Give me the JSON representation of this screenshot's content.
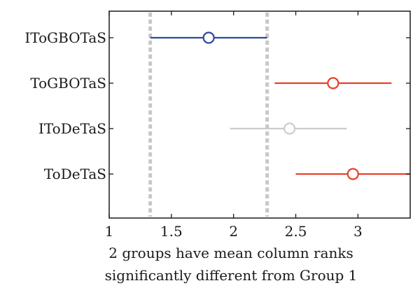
{
  "chart_data": {
    "type": "scatter",
    "subtype": "multiple-comparison-interval-plot",
    "xlabel_lines": [
      "2 groups have mean column ranks",
      "significantly different from Group 1"
    ],
    "xlim": [
      1,
      3.42
    ],
    "xticks": [
      1,
      1.5,
      2,
      2.5,
      3
    ],
    "xtick_labels": [
      "1",
      "1.5",
      "2",
      "2.5",
      "3"
    ],
    "categories": [
      "IToGBOTaS",
      "ToGBOTaS",
      "IToDeTaS",
      "ToDeTaS"
    ],
    "groups": [
      {
        "name": "IToGBOTaS",
        "mean": 1.8,
        "low": 1.33,
        "high": 2.27,
        "color": "#2b4aa0",
        "status": "selected"
      },
      {
        "name": "ToGBOTaS",
        "mean": 2.8,
        "low": 2.33,
        "high": 3.27,
        "color": "#e8402a",
        "status": "significant"
      },
      {
        "name": "IToDeTaS",
        "mean": 2.45,
        "low": 1.97,
        "high": 2.91,
        "color": "#cccccc",
        "status": "not-significant"
      },
      {
        "name": "ToDeTaS",
        "mean": 2.96,
        "low": 2.5,
        "high": 3.42,
        "color": "#e8402a",
        "status": "significant"
      }
    ],
    "reference_lines": [
      1.33,
      2.27
    ],
    "reference_line_color": "#c8c8c8",
    "grid": false,
    "legend": "none"
  }
}
